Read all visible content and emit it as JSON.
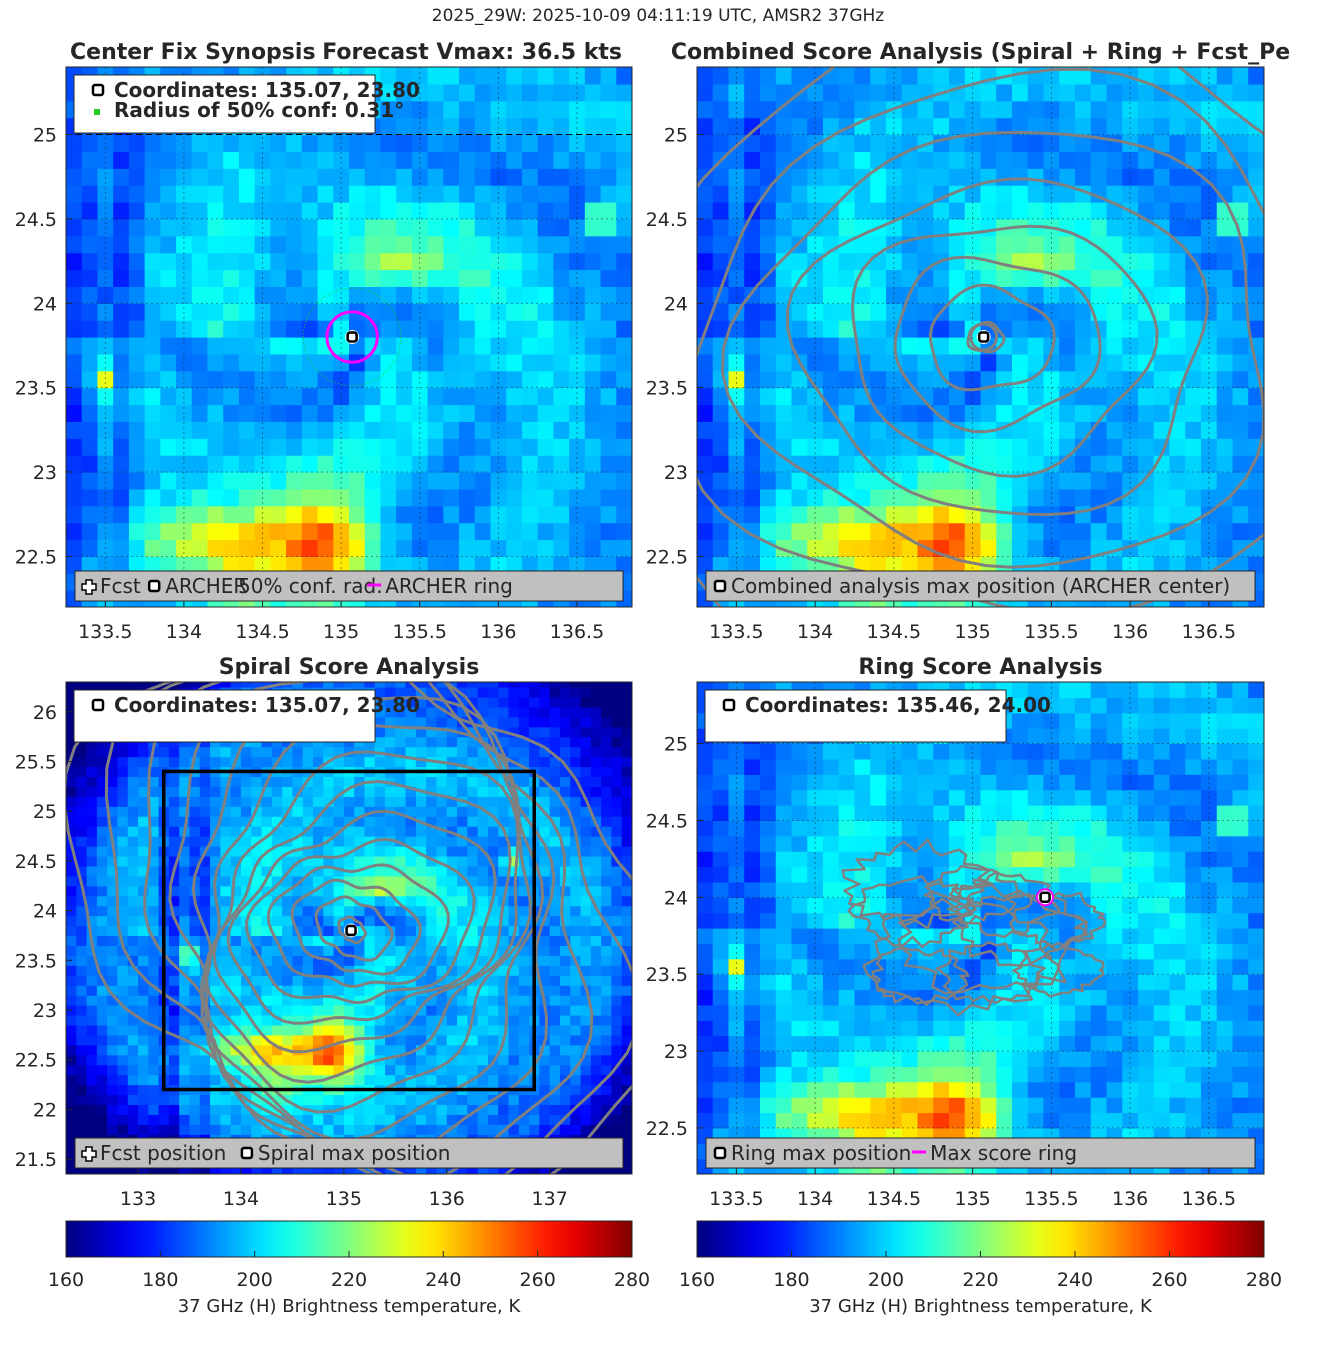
{
  "figure": {
    "suptitle": "2025_29W: 2025-10-09 04:11:19 UTC, AMSR2 37GHz"
  },
  "colors": {
    "archer_marker": "#000000",
    "ring": "#ff00ff",
    "conf_radius": "#22cc22",
    "contour": "#808080",
    "legend_bg": "#c0c0c0"
  },
  "chart_data": [
    {
      "id": "synopsis",
      "type": "heatmap",
      "title_left": "Center Fix Synopsis",
      "title_right": "Forecast Vmax: 36.5 kts",
      "xlim": [
        133.25,
        136.85
      ],
      "ylim": [
        22.2,
        25.4
      ],
      "xticks": [
        133.5,
        134,
        134.5,
        135,
        135.5,
        136,
        136.5
      ],
      "yticks": [
        22.5,
        23,
        23.5,
        24,
        24.5,
        25
      ],
      "grid": true,
      "info_lines": [
        "Coordinates: 135.07, 23.80",
        "Radius of 50% conf: 0.31°"
      ],
      "legend": [
        "Fcst",
        "ARCHER",
        "50% conf. rad.",
        "ARCHER ring"
      ],
      "center": [
        135.07,
        23.8
      ],
      "ring_radius_deg": 0.16,
      "conf_radius_deg": 0.31
    },
    {
      "id": "combined",
      "type": "heatmap",
      "title": "Combined Score Analysis (Spiral + Ring + Fcst_Pe",
      "xlim": [
        133.25,
        136.85
      ],
      "ylim": [
        22.2,
        25.4
      ],
      "xticks": [
        133.5,
        134,
        134.5,
        135,
        135.5,
        136,
        136.5
      ],
      "yticks": [
        22.5,
        23,
        23.5,
        24,
        24.5,
        25
      ],
      "grid": true,
      "legend": [
        "Combined analysis max position (ARCHER center)"
      ],
      "center": [
        135.07,
        23.8
      ]
    },
    {
      "id": "spiral",
      "type": "heatmap",
      "title": "Spiral Score Analysis",
      "xlim": [
        132.3,
        137.8
      ],
      "ylim": [
        21.35,
        26.3
      ],
      "xticks": [
        133,
        134,
        135,
        136,
        137
      ],
      "yticks": [
        21.5,
        22,
        22.5,
        23,
        23.5,
        24,
        24.5,
        25,
        25.5,
        26
      ],
      "grid": false,
      "info_lines": [
        "Coordinates: 135.07, 23.80"
      ],
      "legend": [
        "Fcst position",
        "Spiral max position"
      ],
      "center": [
        135.07,
        23.8
      ],
      "search_box": {
        "lon": [
          133.25,
          136.85
        ],
        "lat": [
          22.2,
          25.4
        ]
      }
    },
    {
      "id": "ring",
      "type": "heatmap",
      "title": "Ring Score Analysis",
      "xlim": [
        133.25,
        136.85
      ],
      "ylim": [
        22.2,
        25.4
      ],
      "xticks": [
        133.5,
        134,
        134.5,
        135,
        135.5,
        136,
        136.5
      ],
      "yticks": [
        22.5,
        23,
        23.5,
        24,
        24.5,
        25
      ],
      "grid": true,
      "info_lines": [
        "Coordinates: 135.46, 24.00"
      ],
      "legend": [
        "Ring max position",
        "Max score ring"
      ],
      "center": [
        135.46,
        24.0
      ]
    }
  ],
  "colorbars": [
    {
      "min": 160,
      "max": 280,
      "ticks": [
        160,
        180,
        200,
        220,
        240,
        260,
        280
      ],
      "label": "37 GHz (H) Brightness temperature, K"
    },
    {
      "min": 160,
      "max": 280,
      "ticks": [
        160,
        180,
        200,
        220,
        240,
        260,
        280
      ],
      "label": "37 GHz (H) Brightness temperature, K"
    }
  ]
}
